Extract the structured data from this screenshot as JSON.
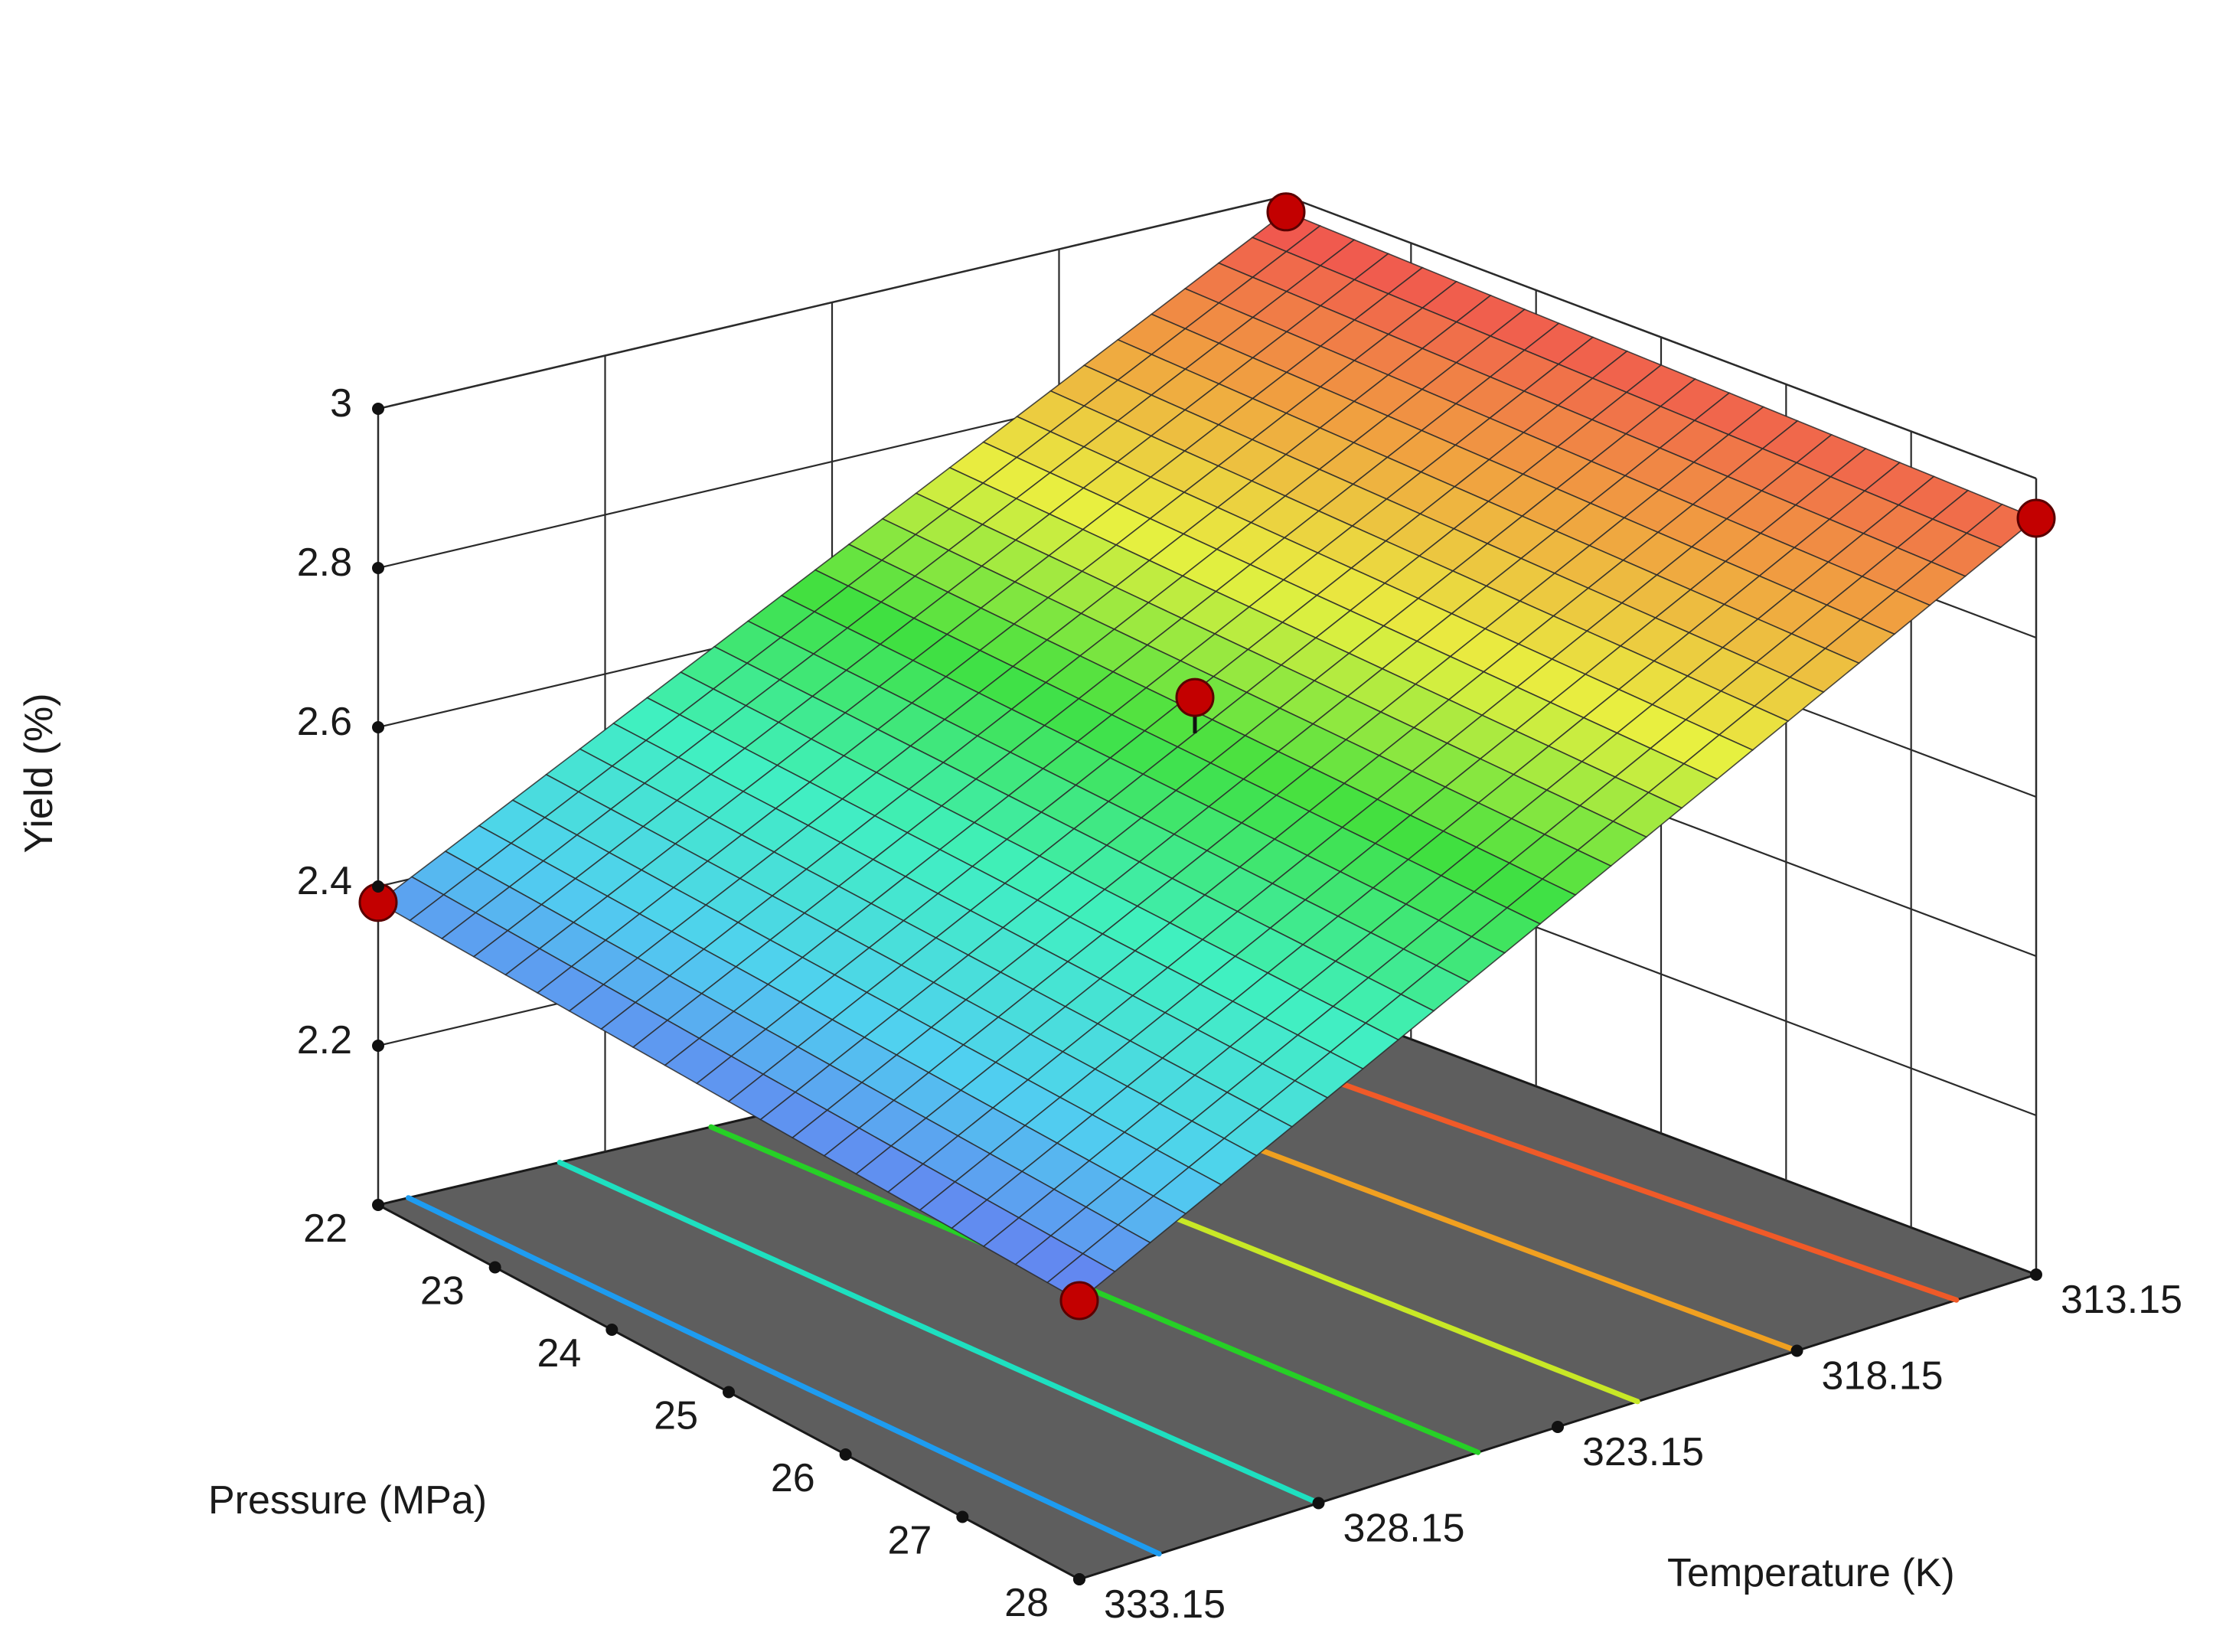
{
  "chart_data": {
    "type": "surface",
    "x": {
      "label": "Pressure (MPa)",
      "ticks": [
        "22",
        "23",
        "24",
        "25",
        "26",
        "27",
        "28"
      ],
      "range": [
        22,
        28
      ]
    },
    "y": {
      "label": "Temperature (K)",
      "ticks": [
        "313.15",
        "318.15",
        "323.15",
        "328.15",
        "333.15"
      ],
      "range": [
        313.15,
        333.15
      ]
    },
    "z": {
      "label": "Yield (%)",
      "ticks": [
        "2.2",
        "2.4",
        "2.6",
        "2.8",
        "3"
      ],
      "range": [
        2.0,
        3.0
      ]
    },
    "surface_corners": {
      "pressure_22_temp_313.15": 2.98,
      "pressure_28_temp_313.15": 2.95,
      "pressure_22_temp_333.15": 2.38,
      "pressure_28_temp_333.15": 2.35
    },
    "design_points": [
      {
        "pressure": 22,
        "temperature": 313.15,
        "yield": 2.98
      },
      {
        "pressure": 28,
        "temperature": 313.15,
        "yield": 2.95
      },
      {
        "pressure": 22,
        "temperature": 333.15,
        "yield": 2.38
      },
      {
        "pressure": 28,
        "temperature": 333.15,
        "yield": 2.35
      },
      {
        "pressure": 25,
        "temperature": 323.15,
        "yield": 2.71
      }
    ],
    "contour_levels": [
      2.4,
      2.5,
      2.6,
      2.7,
      2.8,
      2.9
    ],
    "contour_colors": [
      "#1e9cf0",
      "#1ee0c0",
      "#26d026",
      "#c8e826",
      "#f0a020",
      "#f05a28"
    ],
    "colorscale": [
      "#6a6af0",
      "#50d0f0",
      "#40f0c0",
      "#40e040",
      "#e8f040",
      "#f0a040",
      "#f05050"
    ],
    "floor_color": "#5e5e5e",
    "grid": true
  }
}
